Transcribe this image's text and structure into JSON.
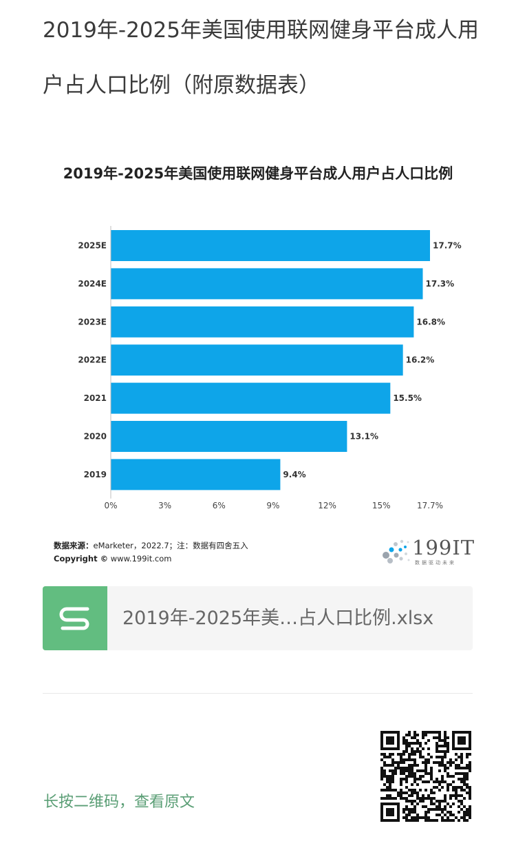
{
  "article": {
    "title": "2019年-2025年美国使用联网健身平台成人用户占人口比例（附原数据表）"
  },
  "chart_data": {
    "type": "bar",
    "orientation": "horizontal",
    "title": "2019年-2025年美国使用联网健身平台成人用户占人口比例",
    "categories": [
      "2025E",
      "2024E",
      "2023E",
      "2022E",
      "2021",
      "2020",
      "2019"
    ],
    "values": [
      17.7,
      17.3,
      16.8,
      16.2,
      15.5,
      13.1,
      9.4
    ],
    "data_labels": [
      "17.7%",
      "17.3%",
      "16.8%",
      "16.2%",
      "15.5%",
      "13.1%",
      "9.4%"
    ],
    "xlim": [
      0,
      17.7
    ],
    "xticks": [
      0,
      3,
      6,
      9,
      12,
      15,
      17.7
    ],
    "xtick_labels": [
      "0%",
      "3%",
      "6%",
      "9%",
      "12%",
      "15%",
      "17.7%"
    ],
    "xlabel": "",
    "ylabel": "",
    "bar_color": "#0ea5e9",
    "grid": false,
    "legend": "none"
  },
  "source": {
    "label": "数据来源：",
    "text": "eMarketer，2022.7；注：数据有四舍五入",
    "copyright_label": "Copyright ©",
    "copyright_text": "www.199it.com"
  },
  "logo": {
    "name": "199IT",
    "tagline": "数据驱动未来"
  },
  "attachment": {
    "file_name": "2019年-2025年美…占人口比例.xlsx",
    "icon": "spreadsheet-s-icon",
    "icon_color": "#62bd80"
  },
  "footer": {
    "qr_caption": "长按二维码，查看原文",
    "qr_icon": "qr-code-icon"
  }
}
